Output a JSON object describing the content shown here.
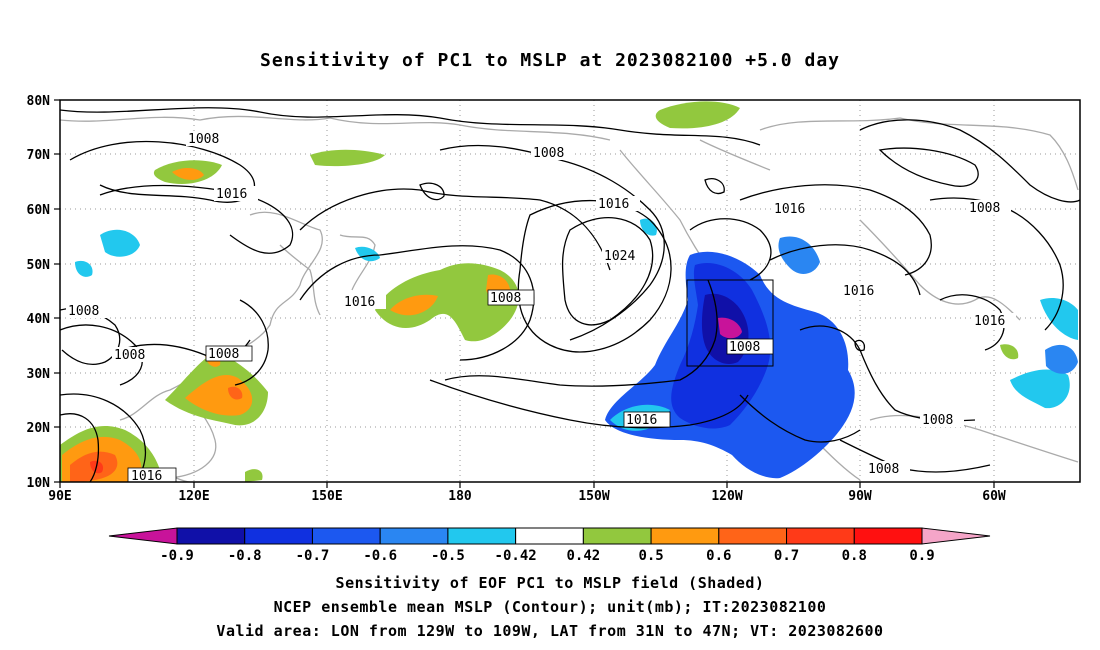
{
  "title": "Sensitivity of PC1 to MSLP at 2023082100 +5.0 day",
  "lat_labels": [
    "80N",
    "70N",
    "60N",
    "50N",
    "40N",
    "30N",
    "20N",
    "10N"
  ],
  "lon_labels": [
    "90E",
    "120E",
    "150E",
    "180",
    "150W",
    "120W",
    "90W",
    "60W"
  ],
  "contour_labels": [
    "1008",
    "1016",
    "1008",
    "1016",
    "1024",
    "1016",
    "1008",
    "1016",
    "1008",
    "1016",
    "1016",
    "1008",
    "1008",
    "1008",
    "1016",
    "1008",
    "1008",
    "1008",
    "1016"
  ],
  "colorbar": {
    "labels": [
      "-0.9",
      "-0.8",
      "-0.7",
      "-0.6",
      "-0.5",
      "-0.42",
      "0.42",
      "0.5",
      "0.6",
      "0.7",
      "0.8",
      "0.9"
    ],
    "colors": [
      "#c8139a",
      "#1010a8",
      "#1030e0",
      "#1c58f0",
      "#2a86f2",
      "#22c8ee",
      "#ffffff",
      "#92c83e",
      "#ff9a10",
      "#ff6418",
      "#ff3a18",
      "#ff1010",
      "#f5a5c8"
    ]
  },
  "captions": {
    "line1": "Sensitivity of EOF PC1 to MSLP field (Shaded)",
    "line2": "NCEP ensemble mean MSLP (Contour); unit(mb); IT:2023082100",
    "line3": "Valid area: LON from 129W to 109W, LAT from 31N to 47N; VT: 2023082600"
  }
}
